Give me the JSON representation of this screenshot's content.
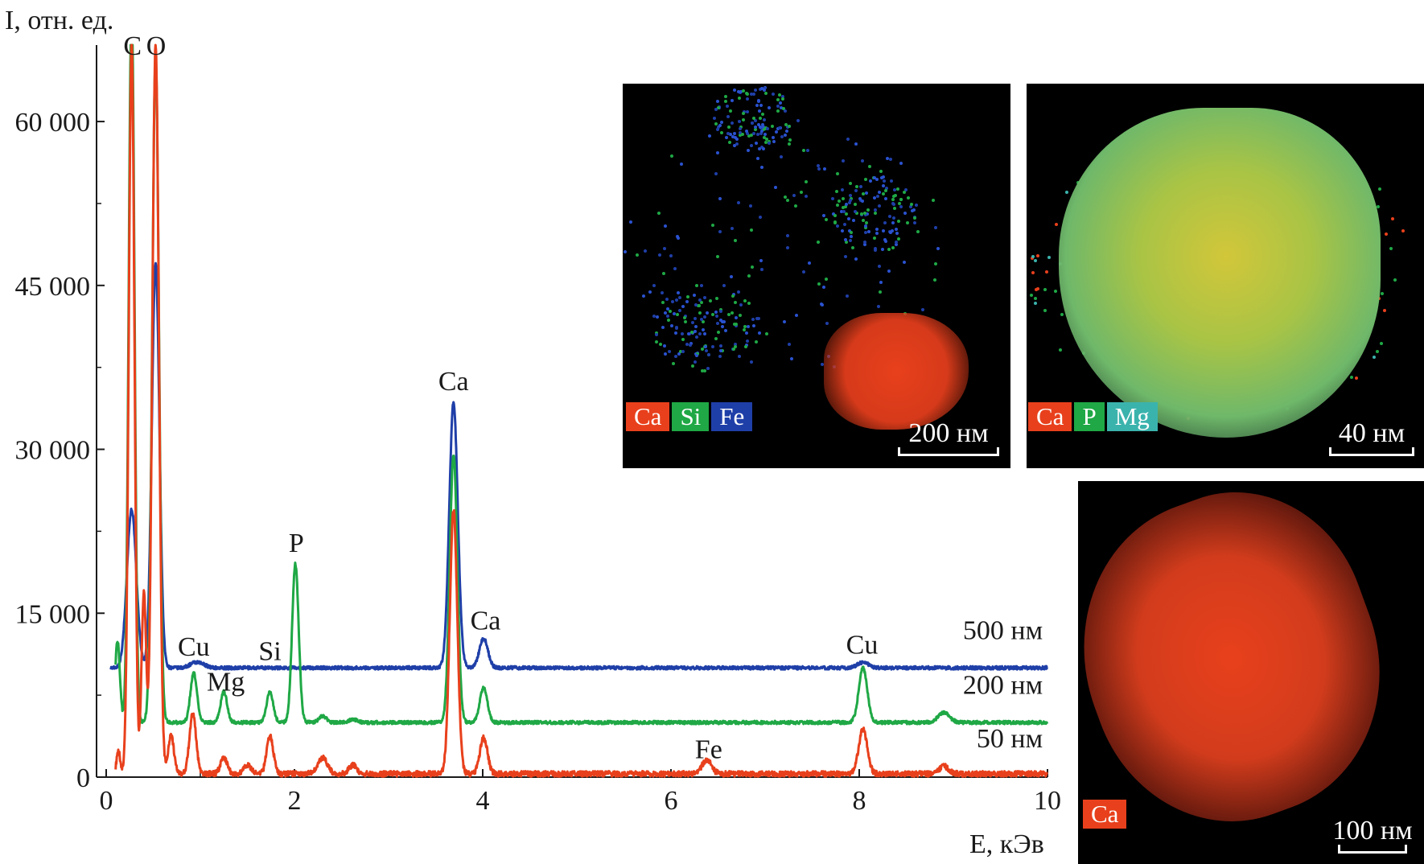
{
  "chart_data": {
    "type": "line",
    "ylabel": "I, отн. ед.",
    "xlabel": "E, кЭв",
    "xlim": [
      0,
      10
    ],
    "ylim": [
      0,
      67000
    ],
    "xticks": [
      "0",
      "2",
      "4",
      "6",
      "8",
      "10"
    ],
    "yticks": [
      "0",
      "15 000",
      "30 000",
      "45 000",
      "60 000"
    ],
    "ytick_values": [
      0,
      15000,
      30000,
      45000,
      60000
    ],
    "xtick_values": [
      0,
      2,
      4,
      6,
      8,
      10
    ],
    "peak_labels": [
      {
        "text": "C",
        "x": 0.28,
        "y": 67000
      },
      {
        "text": "O",
        "x": 0.53,
        "y": 67000
      },
      {
        "text": "Cu",
        "x": 0.93,
        "y": 12000
      },
      {
        "text": "Mg",
        "x": 1.27,
        "y": 8800
      },
      {
        "text": "Si",
        "x": 1.74,
        "y": 11600
      },
      {
        "text": "P",
        "x": 2.02,
        "y": 21500
      },
      {
        "text": "Ca",
        "x": 3.69,
        "y": 36300
      },
      {
        "text": "Ca",
        "x": 4.03,
        "y": 14400
      },
      {
        "text": "Fe",
        "x": 6.4,
        "y": 2600
      },
      {
        "text": "Cu",
        "x": 8.03,
        "y": 12200
      }
    ],
    "series": [
      {
        "name": "500 нм",
        "color": "#1f3fa8",
        "baseline": 10000,
        "peaks": [
          [
            0.27,
            14500,
            0.05
          ],
          [
            0.525,
            37000,
            0.04
          ],
          [
            0.93,
            400,
            0.05
          ],
          [
            1.02,
            300,
            0.05
          ],
          [
            3.69,
            24300,
            0.045
          ],
          [
            4.01,
            2700,
            0.045
          ],
          [
            8.04,
            500,
            0.06
          ]
        ]
      },
      {
        "name": "200 нм",
        "color": "#1fa845",
        "baseline": 5000,
        "peaks": [
          [
            0.12,
            7500,
            0.025
          ],
          [
            0.27,
            67000,
            0.03
          ],
          [
            0.525,
            61000,
            0.035
          ],
          [
            0.93,
            4500,
            0.035
          ],
          [
            1.25,
            2800,
            0.035
          ],
          [
            1.74,
            2800,
            0.035
          ],
          [
            2.01,
            14500,
            0.035
          ],
          [
            2.3,
            600,
            0.04
          ],
          [
            2.62,
            300,
            0.04
          ],
          [
            3.69,
            24500,
            0.04
          ],
          [
            4.01,
            3200,
            0.04
          ],
          [
            8.04,
            5000,
            0.045
          ],
          [
            8.9,
            900,
            0.06
          ]
        ]
      },
      {
        "name": "50 нм",
        "color": "#e8401c",
        "baseline": 300,
        "peaks": [
          [
            0.13,
            2000,
            0.02
          ],
          [
            0.27,
            67000,
            0.03
          ],
          [
            0.4,
            16500,
            0.025
          ],
          [
            0.525,
            66700,
            0.035
          ],
          [
            0.69,
            3500,
            0.03
          ],
          [
            0.92,
            5500,
            0.035
          ],
          [
            1.25,
            1500,
            0.035
          ],
          [
            1.5,
            800,
            0.04
          ],
          [
            1.74,
            3500,
            0.035
          ],
          [
            2.3,
            1500,
            0.05
          ],
          [
            2.62,
            800,
            0.04
          ],
          [
            3.69,
            24200,
            0.04
          ],
          [
            4.01,
            3300,
            0.04
          ],
          [
            6.38,
            1300,
            0.05
          ],
          [
            8.04,
            4100,
            0.045
          ],
          [
            8.9,
            700,
            0.05
          ]
        ]
      }
    ],
    "series_label_y": [
      13500,
      8500,
      3600
    ]
  },
  "insets": [
    {
      "legend": [
        "Ca",
        "Si",
        "Fe"
      ],
      "legend_colors": [
        "#e8401c",
        "#1fa845",
        "#1f3fa8"
      ],
      "scale": "200 нм"
    },
    {
      "legend": [
        "Ca",
        "P",
        "Mg"
      ],
      "legend_colors": [
        "#e8401c",
        "#1fa845",
        "#3bb3ad"
      ],
      "scale": "40 нм"
    },
    {
      "legend": [
        "Ca"
      ],
      "legend_colors": [
        "#e8401c"
      ],
      "scale": "100 нм"
    }
  ]
}
